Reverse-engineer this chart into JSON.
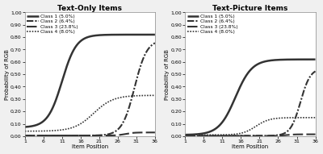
{
  "title_left": "Text-Only Items",
  "title_right": "Text-Picture Items",
  "xlabel": "Item Position",
  "ylabel": "Probability of RGB",
  "xticks": [
    1,
    6,
    11,
    16,
    21,
    26,
    31,
    36
  ],
  "yticks": [
    0.0,
    0.1,
    0.2,
    0.3,
    0.4,
    0.5,
    0.6,
    0.7,
    0.8,
    0.9,
    1.0
  ],
  "xlim": [
    1,
    36
  ],
  "ylim": [
    0.0,
    1.0
  ],
  "legend_labels": [
    "Class 1 (5.0%)",
    "Class 2 (6.4%)",
    "Class 3 (23.8%)",
    "Class 4 (8.0%)"
  ],
  "background_color": "#f0f0f0",
  "plot_bg_color": "#ffffff",
  "line_color": "#333333",
  "font_size": 5.0,
  "title_font_size": 6.5,
  "left_curves": {
    "c1": {
      "mid": 11.0,
      "steep": 0.52,
      "maxv": 0.82,
      "base": 0.07
    },
    "c2": {
      "mid": 30.5,
      "steep": 0.6,
      "maxv": 0.78,
      "base": 0.005
    },
    "c3": {
      "mid": 28.0,
      "steep": 0.9,
      "maxv": 0.03,
      "base": 0.005
    },
    "c4": {
      "mid": 19.5,
      "steep": 0.38,
      "maxv": 0.33,
      "base": 0.04
    }
  },
  "right_curves": {
    "c1": {
      "mid": 14.5,
      "steep": 0.45,
      "maxv": 0.62,
      "base": 0.01
    },
    "c2": {
      "mid": 32.0,
      "steep": 0.75,
      "maxv": 0.55,
      "base": 0.003
    },
    "c3": {
      "mid": 28.0,
      "steep": 0.9,
      "maxv": 0.015,
      "base": 0.002
    },
    "c4": {
      "mid": 20.0,
      "steep": 0.55,
      "maxv": 0.15,
      "base": 0.01
    }
  }
}
